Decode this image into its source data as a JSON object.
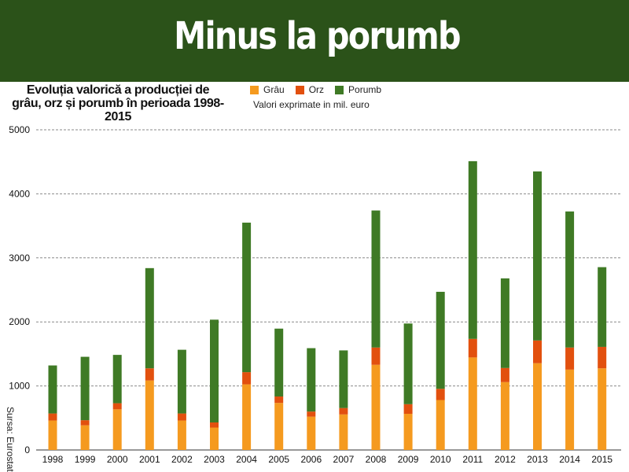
{
  "banner": {
    "title": "Minus la porumb"
  },
  "chart_data": {
    "type": "bar",
    "stacked": true,
    "title": "Evoluția valorică a producției de grâu, orz și porumb în perioada 1998-2015",
    "subtitle": "Valori exprimate in mil. euro",
    "source": "Sursa: Eurostat",
    "categories": [
      "1998",
      "1999",
      "2000",
      "2001",
      "2002",
      "2003",
      "2004",
      "2005",
      "2006",
      "2007",
      "2008",
      "2009",
      "2010",
      "2011",
      "2012",
      "2013",
      "2014",
      "2015"
    ],
    "series": [
      {
        "name": "Grâu",
        "color": "#f59a1f",
        "values": [
          460,
          385,
          635,
          1085,
          460,
          350,
          1025,
          735,
          520,
          555,
          1330,
          565,
          780,
          1445,
          1060,
          1355,
          1255,
          1275
        ]
      },
      {
        "name": "Orz",
        "color": "#e2500e",
        "values": [
          110,
          80,
          95,
          190,
          110,
          80,
          190,
          100,
          80,
          100,
          270,
          150,
          175,
          290,
          220,
          355,
          345,
          335
        ]
      },
      {
        "name": "Porumb",
        "color": "#3f7a25",
        "values": [
          750,
          990,
          755,
          1565,
          995,
          1605,
          2335,
          1060,
          990,
          900,
          2140,
          1260,
          1515,
          2775,
          1400,
          2640,
          2125,
          1245
        ]
      }
    ],
    "ylim": [
      0,
      5000
    ],
    "yticks": [
      0,
      1000,
      2000,
      3000,
      4000,
      5000
    ],
    "grid": true,
    "legend_position": "top"
  }
}
